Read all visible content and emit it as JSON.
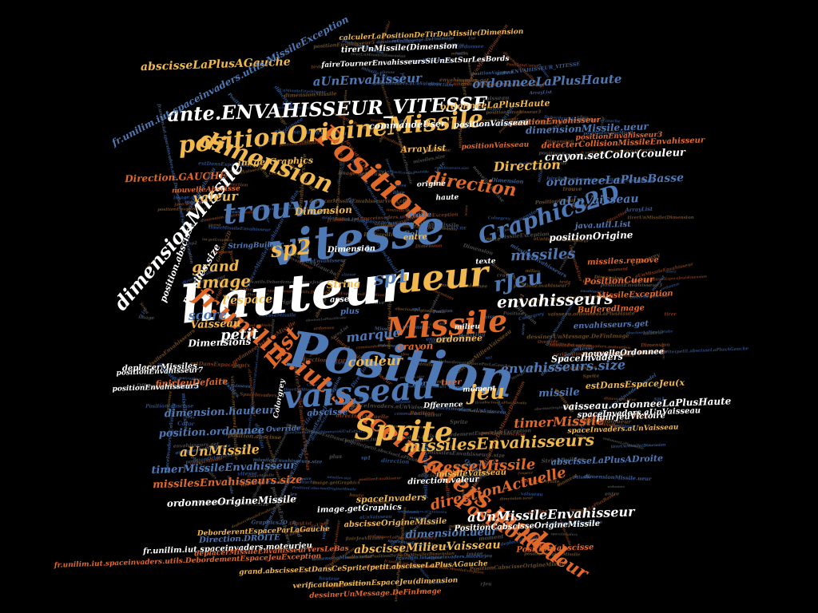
{
  "palette": {
    "background": "#000000",
    "blue": "#4f79b4",
    "orange": "#e0692a",
    "gold": "#f0b84d",
    "white": "#ffffff",
    "navy": "#2a4a7e"
  },
  "words": [
    {
      "text": "Position",
      "color": "blue"
    },
    {
      "text": "hauteur",
      "color": "white"
    },
    {
      "text": "vitesse",
      "color": "blue"
    },
    {
      "text": "Position",
      "color": "orange"
    },
    {
      "text": "ueur",
      "color": "gold"
    },
    {
      "text": "fr.unilim.iut.spaceinvaders.model",
      "color": "orange"
    },
    {
      "text": "dimension",
      "color": "gold"
    },
    {
      "text": "vaisseau",
      "color": "blue"
    },
    {
      "text": "Missile",
      "color": "orange"
    },
    {
      "text": "Sprite",
      "color": "gold"
    },
    {
      "text": "trouve",
      "color": "blue"
    },
    {
      "text": "positionOrigineMissile",
      "color": "gold"
    },
    {
      "text": "ante.ENVAHISSEUR_VITESSE",
      "color": "white"
    },
    {
      "text": "dimensionMissile",
      "color": "white"
    },
    {
      "text": "sp2",
      "color": "gold"
    },
    {
      "text": "Graphics2D",
      "color": "blue"
    },
    {
      "text": "rJeu",
      "color": "blue"
    },
    {
      "text": "direction",
      "color": "orange"
    },
    {
      "text": "envahisseurs",
      "color": "white"
    },
    {
      "text": "List",
      "color": "orange"
    },
    {
      "text": "jeu",
      "color": "gold"
    },
    {
      "text": "missilesEnvahisseurs",
      "color": "gold"
    },
    {
      "text": "vitesseMissile",
      "color": "orange"
    },
    {
      "text": "image",
      "color": "gold"
    },
    {
      "text": "sp1",
      "color": "blue"
    },
    {
      "text": "missiles",
      "color": "blue"
    },
    {
      "text": "grand",
      "color": "gold"
    },
    {
      "text": "envahisseurs.size",
      "color": "blue"
    },
    {
      "text": "Position(Cueur",
      "color": "orange"
    },
    {
      "text": "score",
      "color": "blue"
    },
    {
      "text": "marque",
      "color": "blue"
    },
    {
      "text": "petit",
      "color": "white"
    },
    {
      "text": "couleur",
      "color": "gold"
    },
    {
      "text": "timerMissile",
      "color": "orange"
    },
    {
      "text": "aUnMissile",
      "color": "gold"
    },
    {
      "text": "directionActuelle",
      "color": "orange"
    },
    {
      "text": "aUnMissileEnvahisseur",
      "color": "white"
    },
    {
      "text": "ordonneeOrigineMissile",
      "color": "white"
    },
    {
      "text": "abscisseMilieuVaisseau",
      "color": "gold"
    },
    {
      "text": "Direction",
      "color": "gold"
    },
    {
      "text": "ordonneeLaPlusBasse",
      "color": "blue"
    },
    {
      "text": "ordonneeLaPlusHaute",
      "color": "blue"
    },
    {
      "text": "abscisseLaPlusAGauche",
      "color": "gold"
    },
    {
      "text": "aUnEnvahisseur",
      "color": "blue"
    },
    {
      "text": "aUnVaisseau",
      "color": "blue"
    },
    {
      "text": "valeur",
      "color": "gold"
    },
    {
      "text": "l'espace",
      "color": "gold"
    },
    {
      "text": "Vaisseau",
      "color": "gold"
    },
    {
      "text": "Dimensions",
      "color": "white"
    },
    {
      "text": "dimension.hauteur",
      "color": "blue"
    },
    {
      "text": "position.ordonnee",
      "color": "blue"
    },
    {
      "text": "timerMissileEnvahisseur",
      "color": "blue"
    },
    {
      "text": "missilesEnvahisseurs.size",
      "color": "orange"
    },
    {
      "text": "dimension.ueur",
      "color": "blue"
    },
    {
      "text": "crayon.setColor(couleur",
      "color": "white"
    },
    {
      "text": "Direction.GAUCHE",
      "color": "orange"
    },
    {
      "text": "positionOrigine",
      "color": "white"
    },
    {
      "text": "vaisseau.ordonneeLaPlusHaute",
      "color": "white"
    },
    {
      "text": "missile",
      "color": "blue"
    },
    {
      "text": "dimensionMissile.ueur",
      "color": "blue"
    },
    {
      "text": "estDansEspaceJeu(x",
      "color": "gold"
    },
    {
      "text": "spaceInvaders",
      "color": "gold"
    },
    {
      "text": "crayon",
      "color": "orange"
    },
    {
      "text": "abscisse",
      "color": "blue"
    },
    {
      "text": "String",
      "color": "gold"
    },
    {
      "text": "Dimension",
      "color": "gold"
    },
    {
      "text": "ArrayList",
      "color": "gold"
    },
    {
      "text": "missiles.size",
      "color": "white"
    },
    {
      "text": "im.getGraphics",
      "color": "gold"
    },
    {
      "text": "commandeUser",
      "color": "white"
    },
    {
      "text": "SpaceInvaders",
      "color": "white"
    },
    {
      "text": "finirJeuDefaite",
      "color": "orange"
    },
    {
      "text": "PositionCueur",
      "color": "orange"
    },
    {
      "text": "MissileException",
      "color": "orange"
    },
    {
      "text": "ordonnee",
      "color": "gold"
    },
    {
      "text": "Color",
      "color": "blue"
    },
    {
      "text": "entre",
      "color": "gold"
    },
    {
      "text": "calculerLaPositionDeTirDuMissile(Dimension",
      "color": "gold"
    },
    {
      "text": "tirerUnMissile(Dimension",
      "color": "white"
    },
    {
      "text": "fr.unilim.iut.spaceinvaders.utils.MissileException",
      "color": "blue"
    },
    {
      "text": "abscisseLaPlusADroite",
      "color": "blue"
    },
    {
      "text": "positionEnvahisseur",
      "color": "orange"
    },
    {
      "text": "detecterCollisionMissileEnvahisseur",
      "color": "orange"
    },
    {
      "text": "ordonneeLaPlusHaute",
      "color": "gold"
    },
    {
      "text": "deplacerMissiles",
      "color": "white"
    },
    {
      "text": "grand.abscisseEstDansCeSprite(petit.abscisseLaPlusAGauche",
      "color": "gold"
    },
    {
      "text": "PositionCabscisseOrigineMissile",
      "color": "white"
    },
    {
      "text": "positionVaisseau",
      "color": "white"
    },
    {
      "text": "Direction.DROITE",
      "color": "blue"
    },
    {
      "text": "position.abscisse",
      "color": "white"
    },
    {
      "text": "StringBuilder",
      "color": "blue"
    },
    {
      "text": "nouvelleOrdonnee",
      "color": "white"
    },
    {
      "text": "spaceInvaders.aUnVaisseau",
      "color": "white"
    },
    {
      "text": "finirJeuVictoire",
      "color": "white"
    },
    {
      "text": "missiles.remove",
      "color": "orange"
    },
    {
      "text": "BufferedImage",
      "color": "orange"
    },
    {
      "text": "java.util.List",
      "color": "blue"
    },
    {
      "text": "envahisseurs.get",
      "color": "blue"
    },
    {
      "text": "abscisseOrigineMissile",
      "color": "gold"
    },
    {
      "text": "Override",
      "color": "blue"
    },
    {
      "text": "moment",
      "color": "white"
    },
    {
      "text": "tirer",
      "color": "orange"
    },
    {
      "text": "Dfference",
      "color": "white"
    },
    {
      "text": "texte",
      "color": "white"
    },
    {
      "text": "plus",
      "color": "blue"
    },
    {
      "text": "assez",
      "color": "white"
    },
    {
      "text": "haute",
      "color": "white"
    },
    {
      "text": "origine",
      "color": "white"
    },
    {
      "text": "droite",
      "color": "blue"
    },
    {
      "text": "milieu",
      "color": "white"
    },
    {
      "text": "libre",
      "color": "blue"
    },
    {
      "text": "fr.unilim.iut.spaceinvaders.moteurjeu",
      "color": "white"
    },
    {
      "text": "deplacerMissileEnvahisseurVersLeBas",
      "color": "orange"
    },
    {
      "text": "DeborderentEspaceParLaGauche",
      "color": "gold"
    },
    {
      "text": "verificationPositionEspaceJeu(dimension",
      "color": "gold"
    },
    {
      "text": "dessinerUnMessage.DeFinImage",
      "color": "orange"
    },
    {
      "text": "positionVaisseau",
      "color": "orange"
    },
    {
      "text": "Colorgrey",
      "color": "white"
    },
    {
      "text": "image.getGraphics",
      "color": "white"
    },
    {
      "text": "direction.valeur",
      "color": "white"
    },
    {
      "text": "nouvelleAbscisse",
      "color": "orange"
    },
    {
      "text": "spaceInvaders.aUnVaisseau",
      "color": "gold"
    },
    {
      "text": "positionEnvahisseur5",
      "color": "white"
    },
    {
      "text": "positionEnvahisseur7",
      "color": "white"
    },
    {
      "text": "Dimension",
      "color": "white"
    },
    {
      "text": "positionEnvahisseur3",
      "color": "orange"
    },
    {
      "text": "fr.unilim.iut.spaceinvaders.utils.DebordementEspaceJeuException",
      "color": "orange"
    },
    {
      "text": "faireTournerEnvahisseursSiUnEstSurLesBords",
      "color": "white"
    },
    {
      "text": "Position(abscisse",
      "color": "orange"
    },
    {
      "text": "missileVaisseau",
      "color": "gold"
    }
  ]
}
